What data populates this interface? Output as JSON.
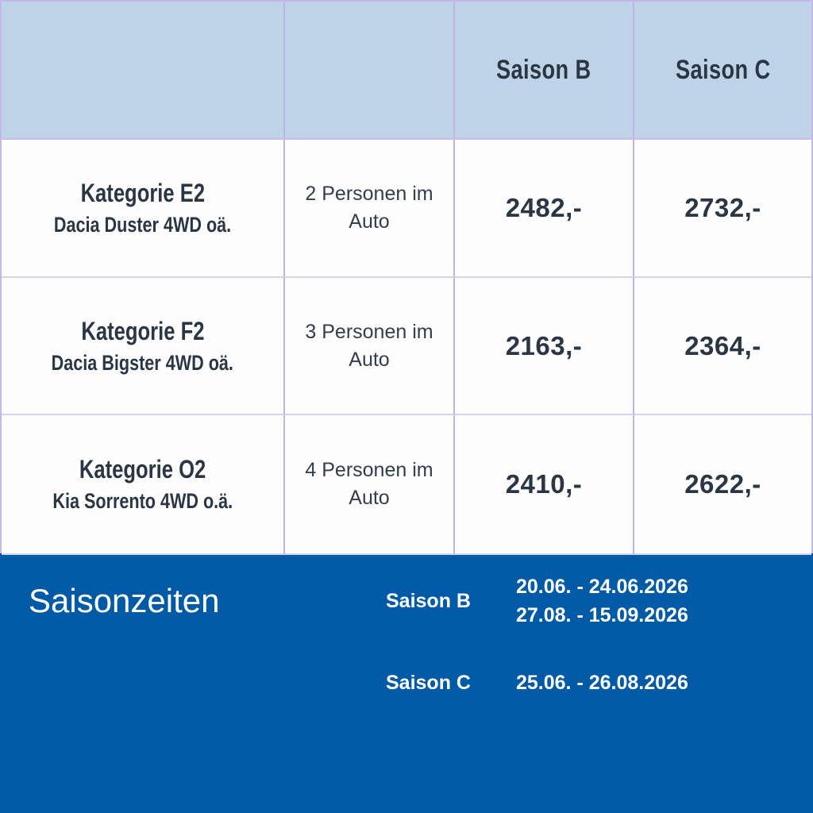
{
  "table": {
    "headers": {
      "saison_b": "Saison B",
      "saison_c": "Saison C"
    },
    "rows": [
      {
        "category": "Kategorie E2",
        "model": "Dacia Duster 4WD oä.",
        "occupancy": "2 Personen im Auto",
        "price_saison_b": "2482,-",
        "price_saison_c": "2732,-"
      },
      {
        "category": "Kategorie F2",
        "model": "Dacia Bigster 4WD oä.",
        "occupancy": "3 Personen im Auto",
        "price_saison_b": "2163,-",
        "price_saison_c": "2364,-"
      },
      {
        "category": "Kategorie O2",
        "model": "Kia Sorrento 4WD o.ä.",
        "occupancy": "4 Personen im Auto",
        "price_saison_b": "2410,-",
        "price_saison_c": "2622,-"
      }
    ]
  },
  "season_info": {
    "title": "Saisonzeiten",
    "entries": [
      {
        "label": "Saison B",
        "dates": [
          "20.06. - 24.06.2026",
          "27.08. - 15.09.2026"
        ]
      },
      {
        "label": "Saison C",
        "dates": [
          "25.06. - 26.08.2026"
        ]
      }
    ]
  },
  "colors": {
    "header_background": "#bed3e8",
    "body_background": "#fdfdfe",
    "grid_line": "#c1b5e2",
    "row_line": "#d8d3ee",
    "text_dark": "#2b3644",
    "footer_background": "#005aa5",
    "footer_text": "#ffffff"
  }
}
